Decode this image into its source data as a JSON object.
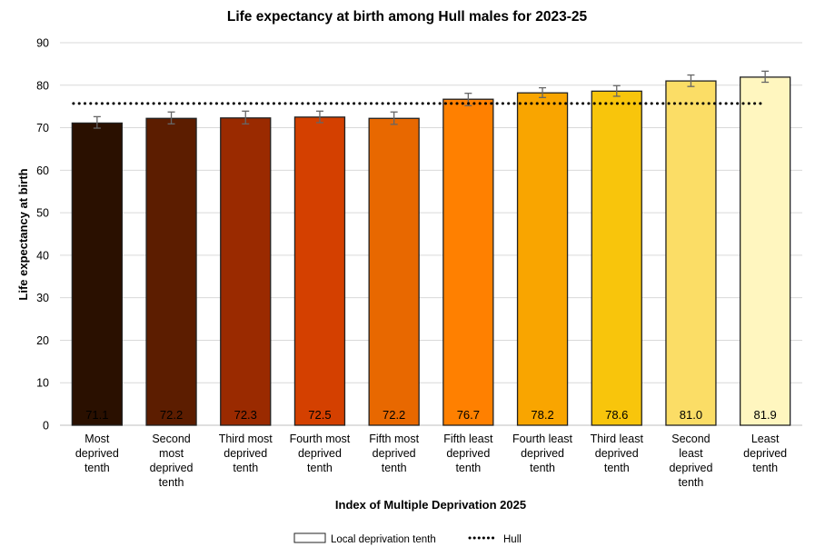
{
  "chart_data": {
    "type": "bar",
    "title": "Life expectancy at birth among Hull males for 2023-25",
    "xlabel": "Index of Multiple Deprivation 2025",
    "ylabel": "Life expectancy at birth",
    "ylim": [
      0,
      90
    ],
    "yticks": [
      0,
      10,
      20,
      30,
      40,
      50,
      60,
      70,
      80,
      90
    ],
    "grid": true,
    "legend_position": "bottom",
    "categories": [
      [
        "Most",
        "deprived",
        "tenth"
      ],
      [
        "Second",
        "most",
        "deprived",
        "tenth"
      ],
      [
        "Third most",
        "deprived",
        "tenth"
      ],
      [
        "Fourth most",
        "deprived",
        "tenth"
      ],
      [
        "Fifth most",
        "deprived",
        "tenth"
      ],
      [
        "Fifth least",
        "deprived",
        "tenth"
      ],
      [
        "Fourth least",
        "deprived",
        "tenth"
      ],
      [
        "Third least",
        "deprived",
        "tenth"
      ],
      [
        "Second",
        "least",
        "deprived",
        "tenth"
      ],
      [
        "Least",
        "deprived",
        "tenth"
      ]
    ],
    "series": [
      {
        "name": "Local deprivation tenth",
        "values": [
          71.1,
          72.2,
          72.3,
          72.5,
          72.2,
          76.7,
          78.2,
          78.6,
          81.0,
          81.9
        ],
        "labels": [
          "71.1",
          "72.2",
          "72.3",
          "72.5",
          "72.2",
          "76.7",
          "78.2",
          "78.6",
          "81.0",
          "81.9"
        ],
        "ci_lower": [
          69.9,
          70.9,
          70.9,
          71.2,
          70.8,
          75.2,
          77.1,
          77.4,
          79.7,
          80.7
        ],
        "ci_upper": [
          72.6,
          73.7,
          73.9,
          73.9,
          73.7,
          78.1,
          79.4,
          79.9,
          82.4,
          83.3
        ],
        "colors": [
          "#2a1000",
          "#5c1d00",
          "#9a2a00",
          "#d44000",
          "#e86800",
          "#ff8000",
          "#f9a500",
          "#f8c50c",
          "#fbdd66",
          "#fff6bf"
        ],
        "label_colors": [
          "#ffffff",
          "#ffffff",
          "#ffffff",
          "#000000",
          "#000000",
          "#000000",
          "#000000",
          "#000000",
          "#000000",
          "#000000"
        ]
      }
    ],
    "reference_line": {
      "name": "Hull",
      "value": 75.7,
      "style": "dotted",
      "color": "#000000"
    }
  }
}
